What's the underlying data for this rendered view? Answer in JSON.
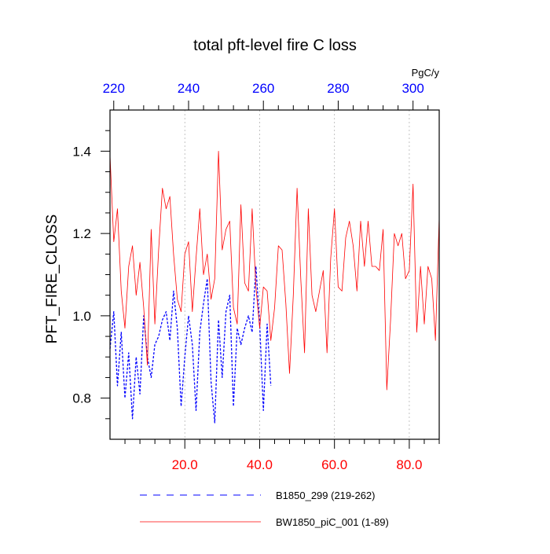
{
  "chart_data": {
    "type": "line",
    "title": "total pft-level fire C loss",
    "units_label": "PgC/y",
    "ylabel": "PFT_FIRE_CLOSS",
    "xlabel": "",
    "xlim": [
      0,
      88
    ],
    "ylim": [
      0.7,
      1.5
    ],
    "y_ticks": [
      0.8,
      1.0,
      1.2,
      1.4
    ],
    "y_tick_labels": [
      "0.8",
      "1.0",
      "1.2",
      "1.4"
    ],
    "x_ticks": [
      20,
      40,
      60,
      80
    ],
    "x_tick_labels": [
      "20.0",
      "40.0",
      "60.0",
      "80.0"
    ],
    "x_top_ticks": [
      1,
      21,
      41,
      61,
      81
    ],
    "x_top_tick_labels": [
      "220",
      "240",
      "260",
      "280",
      "300"
    ],
    "gridlines_x": [
      20,
      40,
      60,
      80
    ],
    "legend_position": "bottom",
    "colors": {
      "bottom_axis_labels": "#ff0000",
      "top_axis_labels": "#0000ff",
      "grid": "#b4b4b4"
    },
    "series": [
      {
        "name": "B1850_299 (219-262)",
        "color": "#0000ff",
        "style": "dashed",
        "x": [
          0,
          1,
          2,
          3,
          4,
          5,
          6,
          7,
          8,
          9,
          10,
          11,
          12,
          13,
          14,
          15,
          16,
          17,
          18,
          19,
          20,
          21,
          22,
          23,
          24,
          25,
          26,
          27,
          28,
          29,
          30,
          31,
          32,
          33,
          34,
          35,
          36,
          37,
          38,
          39,
          40,
          41,
          42,
          43
        ],
        "values": [
          0.92,
          1.01,
          0.83,
          0.96,
          0.8,
          0.91,
          0.75,
          0.9,
          0.81,
          1.0,
          0.9,
          0.85,
          0.93,
          0.95,
          0.99,
          1.01,
          0.94,
          1.06,
          0.97,
          0.78,
          0.9,
          1.0,
          0.93,
          0.77,
          0.96,
          1.03,
          1.09,
          0.84,
          0.74,
          0.99,
          0.85,
          1.01,
          1.05,
          0.78,
          0.97,
          0.93,
          0.97,
          1.0,
          0.96,
          1.12,
          0.98,
          0.77,
          0.98,
          0.83
        ]
      },
      {
        "name": "BW1850_piC_001 (1-89)",
        "color": "#ff0000",
        "style": "solid",
        "x": [
          0,
          1,
          2,
          3,
          4,
          5,
          6,
          7,
          8,
          9,
          10,
          11,
          12,
          13,
          14,
          15,
          16,
          17,
          18,
          19,
          20,
          21,
          22,
          23,
          24,
          25,
          26,
          27,
          28,
          29,
          30,
          31,
          32,
          33,
          34,
          35,
          36,
          37,
          38,
          39,
          40,
          41,
          42,
          43,
          44,
          45,
          46,
          47,
          48,
          49,
          50,
          51,
          52,
          53,
          54,
          55,
          56,
          57,
          58,
          59,
          60,
          61,
          62,
          63,
          64,
          65,
          66,
          67,
          68,
          69,
          70,
          71,
          72,
          73,
          74,
          75,
          76,
          77,
          78,
          79,
          80,
          81,
          82,
          83,
          84,
          85,
          86,
          87,
          88
        ],
        "values": [
          1.39,
          1.18,
          1.26,
          1.06,
          0.97,
          1.12,
          1.17,
          1.05,
          1.13,
          1.02,
          0.88,
          1.21,
          0.98,
          1.16,
          1.31,
          1.26,
          1.29,
          1.15,
          1.04,
          1.01,
          1.15,
          1.18,
          1.01,
          1.14,
          1.26,
          1.1,
          1.15,
          1.04,
          1.09,
          1.4,
          1.16,
          1.21,
          1.23,
          1.02,
          0.98,
          1.27,
          1.08,
          1.06,
          1.26,
          1.07,
          0.97,
          1.07,
          1.06,
          0.94,
          1.02,
          1.17,
          1.16,
          1.03,
          0.86,
          1.05,
          1.31,
          1.09,
          0.91,
          1.26,
          1.05,
          1.01,
          1.06,
          1.11,
          0.91,
          1.14,
          1.26,
          1.07,
          1.06,
          1.19,
          1.23,
          1.17,
          1.06,
          1.23,
          1.12,
          1.23,
          1.12,
          1.12,
          1.11,
          1.21,
          0.82,
          0.99,
          1.2,
          1.17,
          1.2,
          1.09,
          1.11,
          1.32,
          0.96,
          1.12,
          0.98,
          1.12,
          1.09,
          0.94,
          1.24
        ]
      }
    ]
  }
}
